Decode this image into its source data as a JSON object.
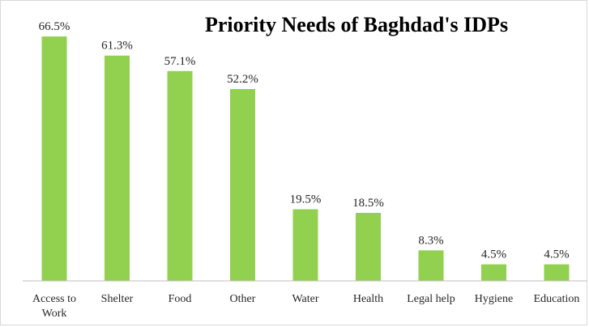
{
  "chart_data": {
    "type": "bar",
    "title": "Priority Needs of Baghdad's IDPs",
    "categories": [
      "Access to Work",
      "Shelter",
      "Food",
      "Other",
      "Water",
      "Health",
      "Legal help",
      "Hygiene",
      "Education"
    ],
    "category_lines": [
      [
        "Access to",
        "Work"
      ],
      [
        "Shelter"
      ],
      [
        "Food"
      ],
      [
        "Other"
      ],
      [
        "Water"
      ],
      [
        "Health"
      ],
      [
        "Legal help"
      ],
      [
        "Hygiene"
      ],
      [
        "Education"
      ]
    ],
    "values": [
      66.5,
      61.3,
      57.1,
      52.2,
      19.5,
      18.5,
      8.3,
      4.5,
      4.5
    ],
    "labels": [
      "66.5%",
      "61.3%",
      "57.1%",
      "52.2%",
      "19.5%",
      "18.5%",
      "8.3%",
      "4.5%",
      "4.5%"
    ],
    "bar_color": "#92d050",
    "xlabel": "",
    "ylabel": "",
    "ylim": [
      0,
      70
    ],
    "grid": false,
    "legend": "none"
  }
}
